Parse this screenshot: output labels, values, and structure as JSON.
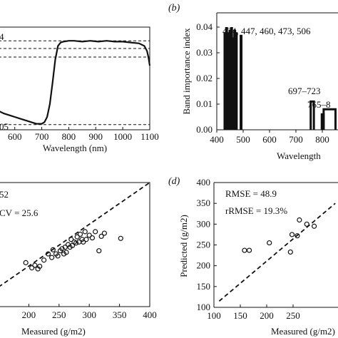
{
  "chart_data": [
    {
      "type": "line",
      "panel_label": "",
      "xlabel": "Wavelength (nm)",
      "ylabel": "",
      "x_ticks": [
        600,
        700,
        800,
        900,
        1000,
        1100
      ],
      "xlim": [
        540,
        1100
      ],
      "ylim": [
        -0.2,
        1.0
      ],
      "corner_labels": {
        "top": "4",
        "bottom": "05"
      },
      "series": [
        {
          "x": [
            540,
            560,
            580,
            600,
            620,
            640,
            660,
            680,
            700,
            710,
            720,
            730,
            740,
            750,
            760,
            770,
            780,
            800,
            820,
            850,
            880,
            910,
            940,
            970,
            1000,
            1030,
            1060,
            1080,
            1090,
            1095,
            1100
          ],
          "y": [
            0.02,
            -0.01,
            -0.03,
            -0.05,
            -0.07,
            -0.09,
            -0.11,
            -0.13,
            -0.13,
            -0.11,
            -0.05,
            0.1,
            0.35,
            0.62,
            0.78,
            0.82,
            0.83,
            0.84,
            0.84,
            0.83,
            0.84,
            0.83,
            0.84,
            0.83,
            0.83,
            0.82,
            0.81,
            0.78,
            0.72,
            0.65,
            0.55
          ]
        }
      ],
      "ref_lines": [
        0.84,
        0.75,
        0.65,
        -0.14
      ]
    },
    {
      "type": "bar",
      "panel_label": "(b)",
      "xlabel": "Wavelength",
      "ylabel": "Band importance index",
      "x_ticks": [
        400,
        500,
        600,
        700,
        800
      ],
      "y_ticks": [
        0.0,
        0.01,
        0.02,
        0.03,
        0.04
      ],
      "y_tick_labels": [
        "0.00",
        "0.01",
        "0.02",
        "0.03",
        "0.04"
      ],
      "xlim": [
        400,
        850
      ],
      "ylim": [
        0,
        0.045
      ],
      "annotations": [
        "434, 447, 460, 473, 506",
        "697–723",
        "765–8"
      ],
      "bars": [
        {
          "x": 431,
          "y": 0.038
        },
        {
          "x": 437,
          "y": 0.04
        },
        {
          "x": 444,
          "y": 0.038
        },
        {
          "x": 450,
          "y": 0.039
        },
        {
          "x": 456,
          "y": 0.04
        },
        {
          "x": 462,
          "y": 0.036
        },
        {
          "x": 468,
          "y": 0.039
        },
        {
          "x": 474,
          "y": 0.038
        },
        {
          "x": 492,
          "y": 0.037
        }
      ],
      "blocks": [
        {
          "x0": 756,
          "x1": 768,
          "y": 0.011
        },
        {
          "x0": 798,
          "x1": 805,
          "y": 0.006
        },
        {
          "x0": 805,
          "x1": 850,
          "y": 0.008
        }
      ]
    },
    {
      "type": "scatter",
      "panel_label": "",
      "xlabel": "Measured (g/m2)",
      "ylabel": "",
      "x_ticks": [
        200,
        250,
        300,
        350,
        400
      ],
      "xlim": [
        170,
        400
      ],
      "ylim": [
        160,
        400
      ],
      "stats": [
        "52",
        "CV = 25.6"
      ],
      "points": [
        {
          "x": 195,
          "y": 245
        },
        {
          "x": 205,
          "y": 235
        },
        {
          "x": 210,
          "y": 240
        },
        {
          "x": 215,
          "y": 233
        },
        {
          "x": 218,
          "y": 238
        },
        {
          "x": 225,
          "y": 250
        },
        {
          "x": 232,
          "y": 262
        },
        {
          "x": 238,
          "y": 255
        },
        {
          "x": 240,
          "y": 270
        },
        {
          "x": 245,
          "y": 262
        },
        {
          "x": 248,
          "y": 258
        },
        {
          "x": 252,
          "y": 268
        },
        {
          "x": 255,
          "y": 272
        },
        {
          "x": 258,
          "y": 262
        },
        {
          "x": 260,
          "y": 275
        },
        {
          "x": 262,
          "y": 265
        },
        {
          "x": 265,
          "y": 280
        },
        {
          "x": 268,
          "y": 275
        },
        {
          "x": 270,
          "y": 290
        },
        {
          "x": 272,
          "y": 278
        },
        {
          "x": 275,
          "y": 285
        },
        {
          "x": 278,
          "y": 283
        },
        {
          "x": 280,
          "y": 295
        },
        {
          "x": 283,
          "y": 285
        },
        {
          "x": 285,
          "y": 300
        },
        {
          "x": 288,
          "y": 290
        },
        {
          "x": 290,
          "y": 285
        },
        {
          "x": 293,
          "y": 305
        },
        {
          "x": 295,
          "y": 290
        },
        {
          "x": 300,
          "y": 298
        },
        {
          "x": 305,
          "y": 293
        },
        {
          "x": 310,
          "y": 305
        },
        {
          "x": 316,
          "y": 268
        },
        {
          "x": 320,
          "y": 296
        },
        {
          "x": 325,
          "y": 302
        },
        {
          "x": 352,
          "y": 292
        }
      ],
      "line_1to1": true
    },
    {
      "type": "scatter",
      "panel_label": "(d)",
      "xlabel": "Measured (g/m2)",
      "ylabel": "Predicted (g/m2)",
      "x_ticks": [
        100,
        150,
        200,
        250
      ],
      "y_ticks": [
        100,
        150,
        200,
        250,
        300,
        350,
        400
      ],
      "xlim": [
        100,
        300
      ],
      "ylim": [
        100,
        400
      ],
      "stats": [
        "RMSE = 48.9",
        "rRMSE = 19.3%"
      ],
      "points": [
        {
          "x": 158,
          "y": 237
        },
        {
          "x": 167,
          "y": 237
        },
        {
          "x": 205,
          "y": 255
        },
        {
          "x": 245,
          "y": 233
        },
        {
          "x": 248,
          "y": 275
        },
        {
          "x": 258,
          "y": 272
        },
        {
          "x": 262,
          "y": 310
        },
        {
          "x": 276,
          "y": 300
        },
        {
          "x": 290,
          "y": 295
        }
      ],
      "line_1to1": true
    }
  ]
}
